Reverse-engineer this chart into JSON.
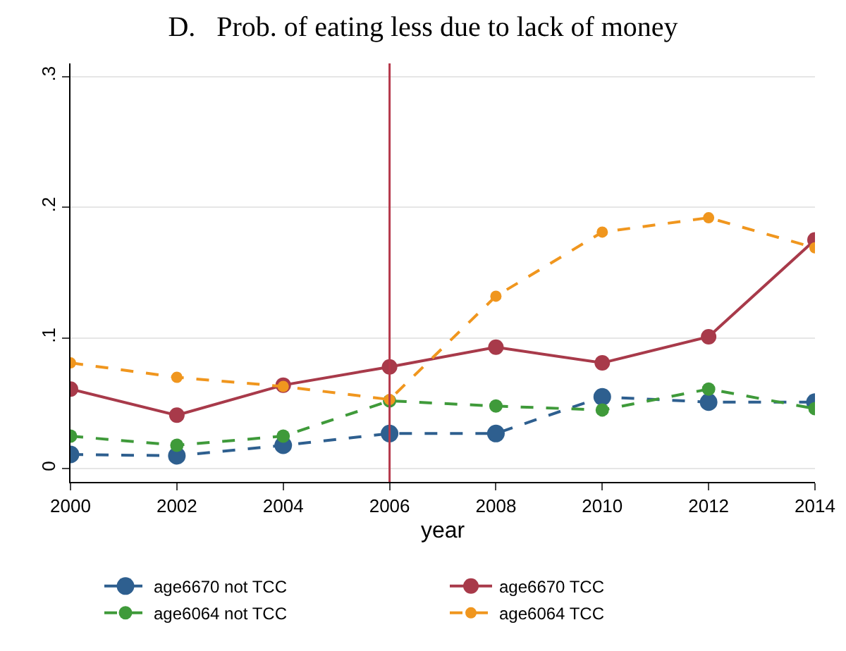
{
  "chart_data": {
    "type": "line",
    "title": "D.   Prob. of eating less due to lack of money",
    "xlabel": "year",
    "x": [
      2000,
      2002,
      2004,
      2006,
      2008,
      2010,
      2012,
      2014
    ],
    "series": [
      {
        "name": "age6670 not TCC",
        "color": "#2e5f8f",
        "line_style": "dashed",
        "values": [
          0.011,
          0.01,
          0.018,
          0.027,
          0.027,
          0.055,
          0.051,
          0.051
        ]
      },
      {
        "name": "age6670 TCC",
        "color": "#a83a4a",
        "line_style": "solid",
        "values": [
          0.061,
          0.041,
          0.064,
          0.078,
          0.093,
          0.081,
          0.101,
          0.175
        ]
      },
      {
        "name": "age6064 not TCC",
        "color": "#3f9a3a",
        "line_style": "dashed",
        "values": [
          0.025,
          0.018,
          0.025,
          0.052,
          0.048,
          0.045,
          0.061,
          0.046
        ]
      },
      {
        "name": "age6064 TCC",
        "color": "#f0961e",
        "line_style": "dashed",
        "values": [
          0.081,
          0.07,
          0.063,
          0.053,
          0.132,
          0.181,
          0.192,
          0.169
        ]
      }
    ],
    "xlim": [
      2000,
      2014
    ],
    "xticks": [
      2000,
      2002,
      2004,
      2006,
      2008,
      2010,
      2012,
      2014
    ],
    "ylim": [
      -0.01,
      0.31
    ],
    "yticks": [
      {
        "value": 0,
        "label": "0"
      },
      {
        "value": 0.1,
        "label": ".1"
      },
      {
        "value": 0.2,
        "label": ".2"
      },
      {
        "value": 0.3,
        "label": ".3"
      }
    ],
    "ref_lines": [
      {
        "axis": "x",
        "value": 2006,
        "color": "#b5384a"
      }
    ],
    "grid": "y",
    "legend": "bottom",
    "marker": "circle"
  }
}
